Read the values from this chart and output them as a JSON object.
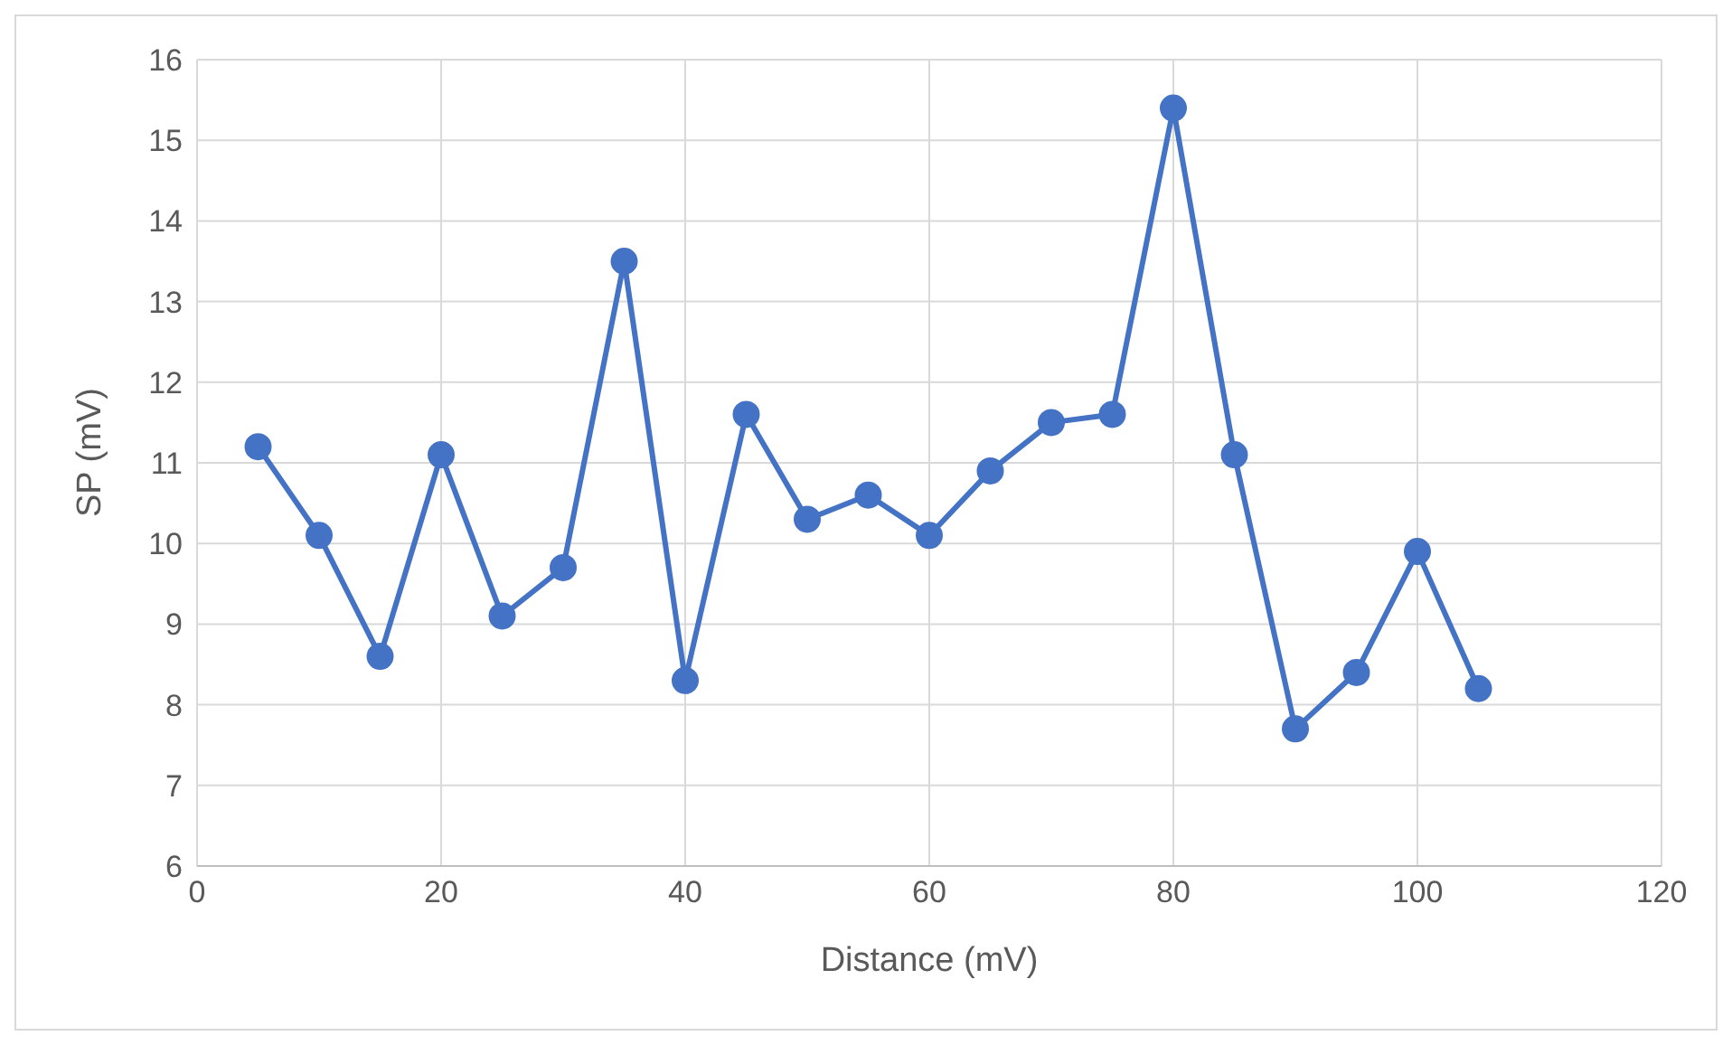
{
  "chart_data": {
    "type": "line",
    "xlabel": "Distance (mV)",
    "ylabel": "SP (mV)",
    "x": [
      5,
      10,
      15,
      20,
      25,
      30,
      35,
      40,
      45,
      50,
      55,
      60,
      65,
      70,
      75,
      80,
      85,
      90,
      95,
      100,
      105
    ],
    "series": [
      {
        "color": "#4472c4",
        "values": [
          11.2,
          10.1,
          8.6,
          11.1,
          9.1,
          9.7,
          13.5,
          8.3,
          11.6,
          10.3,
          10.6,
          10.1,
          10.9,
          11.5,
          11.6,
          15.4,
          11.1,
          7.7,
          8.4,
          9.9,
          8.2
        ]
      }
    ],
    "xlim": [
      0,
      120
    ],
    "xticks": [
      0,
      20,
      40,
      60,
      80,
      100,
      120
    ],
    "ylim": [
      6,
      16
    ],
    "yticks": [
      6,
      7,
      8,
      9,
      10,
      11,
      12,
      13,
      14,
      15,
      16
    ],
    "grid": true,
    "marker": "circle",
    "line_style": "solid",
    "legend": false
  }
}
